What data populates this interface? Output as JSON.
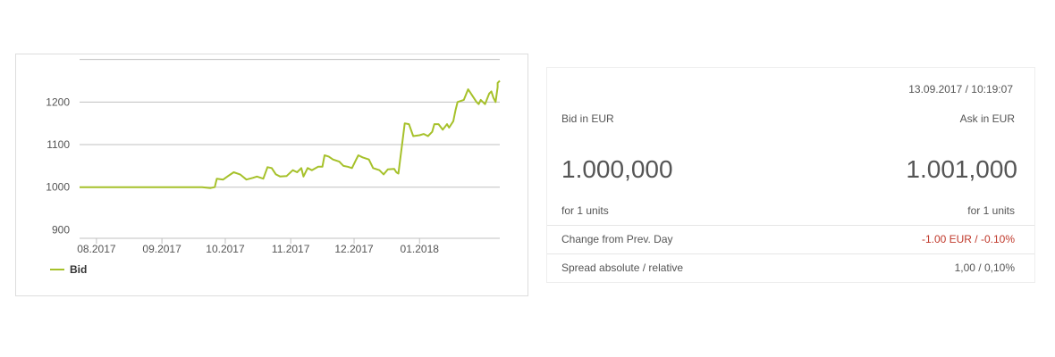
{
  "chart_data": {
    "type": "line",
    "x_ticks": [
      "08.2017",
      "09.2017",
      "10.2017",
      "11.2017",
      "12.2017",
      "01.2018"
    ],
    "y_ticks": [
      900,
      1000,
      1100,
      1200
    ],
    "ylim": [
      880,
      1295
    ],
    "xlim": [
      "2017-07-24",
      "2018-02-08"
    ],
    "grid": "horizontal",
    "legend": "bottom-left",
    "series": [
      {
        "name": "Bid",
        "color": "#a6c12a",
        "points": [
          [
            "2017-07-24",
            1000
          ],
          [
            "2017-09-20",
            1000
          ],
          [
            "2017-09-24",
            998
          ],
          [
            "2017-09-26",
            1000
          ],
          [
            "2017-09-27",
            1020
          ],
          [
            "2017-09-30",
            1018
          ],
          [
            "2017-10-02",
            1025
          ],
          [
            "2017-10-05",
            1035
          ],
          [
            "2017-10-08",
            1030
          ],
          [
            "2017-10-11",
            1018
          ],
          [
            "2017-10-14",
            1022
          ],
          [
            "2017-10-16",
            1025
          ],
          [
            "2017-10-19",
            1020
          ],
          [
            "2017-10-21",
            1047
          ],
          [
            "2017-10-23",
            1045
          ],
          [
            "2017-10-25",
            1030
          ],
          [
            "2017-10-27",
            1025
          ],
          [
            "2017-10-30",
            1026
          ],
          [
            "2017-11-02",
            1040
          ],
          [
            "2017-11-04",
            1035
          ],
          [
            "2017-11-06",
            1045
          ],
          [
            "2017-11-07",
            1025
          ],
          [
            "2017-11-09",
            1045
          ],
          [
            "2017-11-11",
            1040
          ],
          [
            "2017-11-14",
            1048
          ],
          [
            "2017-11-16",
            1048
          ],
          [
            "2017-11-17",
            1075
          ],
          [
            "2017-11-19",
            1072
          ],
          [
            "2017-11-21",
            1065
          ],
          [
            "2017-11-24",
            1060
          ],
          [
            "2017-11-26",
            1050
          ],
          [
            "2017-11-28",
            1048
          ],
          [
            "2017-11-30",
            1045
          ],
          [
            "2017-12-02",
            1065
          ],
          [
            "2017-12-03",
            1075
          ],
          [
            "2017-12-05",
            1070
          ],
          [
            "2017-12-08",
            1065
          ],
          [
            "2017-12-10",
            1045
          ],
          [
            "2017-12-13",
            1040
          ],
          [
            "2017-12-15",
            1030
          ],
          [
            "2017-12-17",
            1042
          ],
          [
            "2017-12-20",
            1043
          ],
          [
            "2017-12-21",
            1035
          ],
          [
            "2017-12-22",
            1032
          ],
          [
            "2017-12-25",
            1150
          ],
          [
            "2017-12-27",
            1148
          ],
          [
            "2017-12-29",
            1120
          ],
          [
            "2018-01-01",
            1122
          ],
          [
            "2018-01-03",
            1125
          ],
          [
            "2018-01-05",
            1120
          ],
          [
            "2018-01-07",
            1130
          ],
          [
            "2018-01-08",
            1148
          ],
          [
            "2018-01-10",
            1148
          ],
          [
            "2018-01-12",
            1135
          ],
          [
            "2018-01-14",
            1148
          ],
          [
            "2018-01-15",
            1140
          ],
          [
            "2018-01-17",
            1155
          ],
          [
            "2018-01-18",
            1180
          ],
          [
            "2018-01-19",
            1200
          ],
          [
            "2018-01-22",
            1205
          ],
          [
            "2018-01-24",
            1230
          ],
          [
            "2018-01-26",
            1215
          ],
          [
            "2018-01-28",
            1200
          ],
          [
            "2018-01-29",
            1195
          ],
          [
            "2018-01-30",
            1205
          ],
          [
            "2018-02-01",
            1195
          ],
          [
            "2018-02-03",
            1220
          ],
          [
            "2018-02-04",
            1225
          ],
          [
            "2018-02-05",
            1210
          ],
          [
            "2018-02-06",
            1200
          ],
          [
            "2018-02-07",
            1235
          ],
          [
            "2018-02-07",
            1245
          ],
          [
            "2018-02-08",
            1250
          ]
        ]
      }
    ]
  },
  "legend_label": "Bid",
  "quote": {
    "timestamp": "13.09.2017 / 10:19:07",
    "bid_label": "Bid in EUR",
    "ask_label": "Ask in EUR",
    "bid_value": "1.000,000",
    "ask_value": "1.001,000",
    "bid_units": "for 1 units",
    "ask_units": "for 1 units",
    "change_label": "Change from Prev. Day",
    "change_value": "-1.00 EUR / -0.10%",
    "spread_label": "Spread absolute / relative",
    "spread_value": "1,00 / 0,10%"
  },
  "colors": {
    "line": "#a6c12a",
    "grid": "#c0c0c0",
    "negative": "#c0392b"
  }
}
